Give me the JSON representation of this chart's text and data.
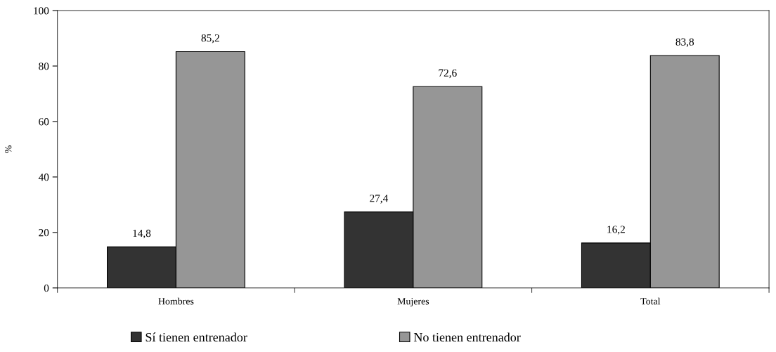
{
  "chart_data": {
    "type": "bar",
    "ylabel": "%",
    "categories": [
      "Hombres",
      "Mujeres",
      "Total"
    ],
    "series": [
      {
        "name": "Sí tienen entrenador",
        "color": "#333333",
        "values": [
          14.8,
          27.4,
          16.2
        ]
      },
      {
        "name": "No tienen entrenador",
        "color": "#969696",
        "values": [
          85.2,
          72.6,
          83.8
        ]
      }
    ],
    "value_labels": [
      [
        "14,8",
        "27,4",
        "16,2"
      ],
      [
        "85,2",
        "72,6",
        "83,8"
      ]
    ],
    "ylim": [
      0,
      100
    ],
    "yticks": [
      0,
      20,
      40,
      60,
      80,
      100
    ],
    "grid": false,
    "legend": "bottom"
  }
}
